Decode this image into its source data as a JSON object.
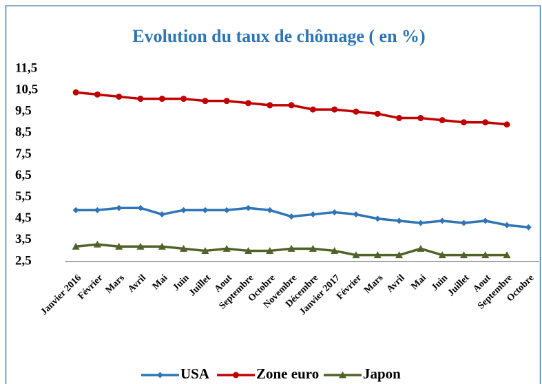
{
  "chart_data": {
    "type": "line",
    "title": "Evolution du taux de chômage ( en %)",
    "categories": [
      "Janvier 2016",
      "Février",
      "Mars",
      "Avril",
      "Mai",
      "Juin",
      "Juillet",
      "Aout",
      "Septembre",
      "Octobre",
      "Novembre",
      "Décembre",
      "Janvier 2017",
      "Février",
      "Mars",
      "Avril",
      "Mai",
      "Juin",
      "Juillet",
      "Aout",
      "Septembre",
      "Octobre"
    ],
    "series": [
      {
        "name": "USA",
        "color": "#2e75b6",
        "marker": "diamond",
        "values": [
          4.9,
          4.9,
          5.0,
          5.0,
          4.7,
          4.9,
          4.9,
          4.9,
          5.0,
          4.9,
          4.6,
          4.7,
          4.8,
          4.7,
          4.5,
          4.4,
          4.3,
          4.4,
          4.3,
          4.4,
          4.2,
          4.1
        ]
      },
      {
        "name": "Zone euro",
        "color": "#c00000",
        "marker": "circle",
        "values": [
          10.4,
          10.3,
          10.2,
          10.1,
          10.1,
          10.1,
          10.0,
          10.0,
          9.9,
          9.8,
          9.8,
          9.6,
          9.6,
          9.5,
          9.4,
          9.2,
          9.2,
          9.1,
          9.0,
          9.0,
          8.9,
          null
        ]
      },
      {
        "name": "Japon",
        "color": "#4f6228",
        "marker": "triangle",
        "values": [
          3.2,
          3.3,
          3.2,
          3.2,
          3.2,
          3.1,
          3.0,
          3.1,
          3.0,
          3.0,
          3.1,
          3.1,
          3.0,
          2.8,
          2.8,
          2.8,
          3.1,
          2.8,
          2.8,
          2.8,
          2.8,
          null
        ]
      }
    ],
    "ylim": [
      2.5,
      11.5
    ],
    "yticks": [
      {
        "value": 2.5,
        "label": "2,5"
      },
      {
        "value": 3.5,
        "label": "3,5"
      },
      {
        "value": 4.5,
        "label": "4,5"
      },
      {
        "value": 5.5,
        "label": "5,5"
      },
      {
        "value": 6.5,
        "label": "6,5"
      },
      {
        "value": 7.5,
        "label": "7,5"
      },
      {
        "value": 8.5,
        "label": "8,5"
      },
      {
        "value": 9.5,
        "label": "9,5"
      },
      {
        "value": 10.5,
        "label": "10,5"
      },
      {
        "value": 11.5,
        "label": "11,5"
      }
    ],
    "grid": false,
    "legend": "bottom"
  }
}
